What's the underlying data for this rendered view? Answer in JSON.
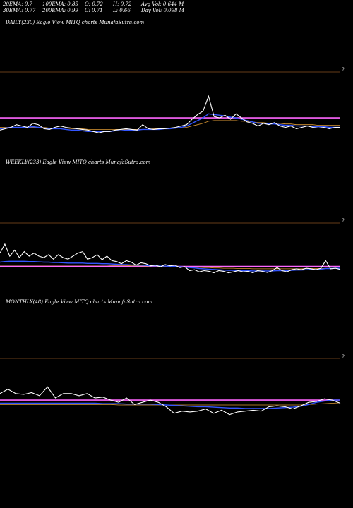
{
  "header": {
    "row1": [
      {
        "label": "20EMA:",
        "value": "0.7"
      },
      {
        "label": "100EMA:",
        "value": "0.85"
      },
      {
        "label": "O:",
        "value": "0.72"
      },
      {
        "label": "H:",
        "value": "0.72"
      },
      {
        "label": "Avg Vol:",
        "value": "0.644 M"
      }
    ],
    "row2": [
      {
        "label": "30EMA:",
        "value": "0.77"
      },
      {
        "label": "200EMA:",
        "value": "0.99"
      },
      {
        "label": "C:",
        "value": "0.71"
      },
      {
        "label": "L:",
        "value": "0.66"
      },
      {
        "label": "Day Vol:",
        "value": "0.098 M"
      }
    ]
  },
  "panels": [
    {
      "label": "DAILY(230) Eagle  View  MITQ charts MunafaSutra.com",
      "tick": "2"
    },
    {
      "label": "WEEKLY(233) Eagle  View  MITQ charts MunafaSutra.com",
      "tick": "2"
    },
    {
      "label": "MONTHLY(48) Eagle  View  MITQ charts MunafaSutra.com",
      "tick": "2"
    }
  ],
  "colors": {
    "price": "#ffffff",
    "ema_short": "#3355ff",
    "ema_mid": "#dd9933",
    "ema_long": "#ff66ff",
    "grid": "#cc7733"
  },
  "chart_data": [
    {
      "type": "line",
      "series": [
        {
          "values": [
            0.62,
            0.64,
            0.66,
            0.7,
            0.68,
            0.66,
            0.72,
            0.7,
            0.64,
            0.63,
            0.66,
            0.68,
            0.66,
            0.65,
            0.64,
            0.63,
            0.62,
            0.6,
            0.58,
            0.6,
            0.6,
            0.62,
            0.63,
            0.64,
            0.63,
            0.62,
            0.7,
            0.64,
            0.63,
            0.64,
            0.64,
            0.65,
            0.66,
            0.68,
            0.7,
            0.78,
            0.85,
            0.9,
            1.12,
            0.82,
            0.8,
            0.84,
            0.78,
            0.86,
            0.8,
            0.74,
            0.72,
            0.68,
            0.72,
            0.7,
            0.73,
            0.68,
            0.66,
            0.68,
            0.64,
            0.66,
            0.68,
            0.66,
            0.65,
            0.66,
            0.64,
            0.66,
            0.66
          ]
        },
        {
          "values": [
            0.64,
            0.65,
            0.66,
            0.66,
            0.66,
            0.66,
            0.67,
            0.66,
            0.65,
            0.64,
            0.64,
            0.64,
            0.63,
            0.62,
            0.62,
            0.61,
            0.6,
            0.6,
            0.6,
            0.6,
            0.6,
            0.61,
            0.61,
            0.62,
            0.62,
            0.62,
            0.63,
            0.63,
            0.63,
            0.63,
            0.64,
            0.64,
            0.65,
            0.66,
            0.68,
            0.72,
            0.76,
            0.8,
            0.86,
            0.85,
            0.84,
            0.83,
            0.81,
            0.8,
            0.78,
            0.76,
            0.74,
            0.72,
            0.72,
            0.71,
            0.71,
            0.7,
            0.69,
            0.69,
            0.68,
            0.68,
            0.68,
            0.67,
            0.67,
            0.67,
            0.66,
            0.66,
            0.66
          ]
        },
        {
          "values": [
            0.66,
            0.66,
            0.66,
            0.66,
            0.66,
            0.66,
            0.66,
            0.66,
            0.66,
            0.65,
            0.65,
            0.65,
            0.65,
            0.64,
            0.64,
            0.64,
            0.63,
            0.63,
            0.63,
            0.63,
            0.63,
            0.63,
            0.63,
            0.63,
            0.63,
            0.63,
            0.63,
            0.63,
            0.64,
            0.64,
            0.64,
            0.64,
            0.65,
            0.65,
            0.66,
            0.68,
            0.7,
            0.72,
            0.75,
            0.76,
            0.76,
            0.76,
            0.76,
            0.76,
            0.75,
            0.75,
            0.74,
            0.73,
            0.73,
            0.72,
            0.72,
            0.72,
            0.71,
            0.71,
            0.7,
            0.7,
            0.7,
            0.7,
            0.69,
            0.69,
            0.69,
            0.69,
            0.69
          ]
        },
        {
          "values": [
            0.8,
            0.8,
            0.8,
            0.8,
            0.8,
            0.8,
            0.8,
            0.8,
            0.8,
            0.8,
            0.8,
            0.8,
            0.8,
            0.8,
            0.8,
            0.8,
            0.8,
            0.8,
            0.8,
            0.8,
            0.8,
            0.8,
            0.8,
            0.8,
            0.8,
            0.8,
            0.8,
            0.8,
            0.8,
            0.8,
            0.8,
            0.8,
            0.8,
            0.8,
            0.8,
            0.8,
            0.8,
            0.8,
            0.8,
            0.8,
            0.8,
            0.8,
            0.8,
            0.8,
            0.8,
            0.8,
            0.8,
            0.8,
            0.8,
            0.8,
            0.8,
            0.8,
            0.8,
            0.8,
            0.8,
            0.8,
            0.8,
            0.8,
            0.8,
            0.8,
            0.8,
            0.8,
            0.8
          ]
        }
      ],
      "ylim": [
        0.3,
        1.5
      ]
    },
    {
      "type": "line",
      "series": [
        {
          "values": [
            1.2,
            1.5,
            1.1,
            1.3,
            1.05,
            1.25,
            1.1,
            1.2,
            1.1,
            1.05,
            1.15,
            1.0,
            1.15,
            1.05,
            1.0,
            1.1,
            1.2,
            1.25,
            1.0,
            1.05,
            1.15,
            0.98,
            1.1,
            0.95,
            0.92,
            0.85,
            0.95,
            0.9,
            0.8,
            0.88,
            0.85,
            0.78,
            0.8,
            0.75,
            0.82,
            0.78,
            0.8,
            0.72,
            0.75,
            0.62,
            0.65,
            0.58,
            0.62,
            0.6,
            0.55,
            0.62,
            0.6,
            0.55,
            0.58,
            0.62,
            0.58,
            0.6,
            0.55,
            0.62,
            0.6,
            0.56,
            0.62,
            0.72,
            0.62,
            0.58,
            0.65,
            0.68,
            0.65,
            0.7,
            0.68,
            0.65,
            0.7,
            0.95,
            0.68,
            0.7,
            0.66
          ]
        },
        {
          "values": [
            0.9,
            0.92,
            0.93,
            0.93,
            0.93,
            0.93,
            0.92,
            0.92,
            0.91,
            0.9,
            0.9,
            0.89,
            0.89,
            0.88,
            0.87,
            0.87,
            0.87,
            0.87,
            0.86,
            0.86,
            0.86,
            0.85,
            0.85,
            0.84,
            0.83,
            0.82,
            0.82,
            0.81,
            0.8,
            0.8,
            0.79,
            0.78,
            0.78,
            0.77,
            0.77,
            0.76,
            0.76,
            0.75,
            0.74,
            0.72,
            0.71,
            0.69,
            0.68,
            0.67,
            0.66,
            0.65,
            0.64,
            0.63,
            0.63,
            0.62,
            0.62,
            0.62,
            0.61,
            0.61,
            0.61,
            0.61,
            0.61,
            0.62,
            0.62,
            0.62,
            0.63,
            0.64,
            0.64,
            0.65,
            0.66,
            0.66,
            0.67,
            0.69,
            0.69,
            0.7,
            0.7
          ]
        },
        {
          "values": [
            0.8,
            0.8,
            0.8,
            0.8,
            0.8,
            0.8,
            0.8,
            0.8,
            0.8,
            0.8,
            0.8,
            0.8,
            0.8,
            0.8,
            0.8,
            0.8,
            0.8,
            0.8,
            0.8,
            0.8,
            0.8,
            0.8,
            0.8,
            0.79,
            0.79,
            0.79,
            0.79,
            0.78,
            0.78,
            0.78,
            0.77,
            0.77,
            0.77,
            0.76,
            0.76,
            0.76,
            0.75,
            0.75,
            0.74,
            0.74,
            0.73,
            0.73,
            0.72,
            0.72,
            0.71,
            0.71,
            0.7,
            0.7,
            0.7,
            0.69,
            0.69,
            0.69,
            0.68,
            0.68,
            0.68,
            0.68,
            0.68,
            0.68,
            0.68,
            0.68,
            0.68,
            0.68,
            0.68,
            0.69,
            0.69,
            0.69,
            0.69,
            0.7,
            0.7,
            0.7,
            0.7
          ]
        },
        {
          "values": [
            0.76,
            0.76,
            0.76,
            0.76,
            0.76,
            0.76,
            0.76,
            0.76,
            0.76,
            0.76,
            0.76,
            0.76,
            0.76,
            0.76,
            0.76,
            0.76,
            0.76,
            0.76,
            0.76,
            0.76,
            0.76,
            0.76,
            0.76,
            0.76,
            0.76,
            0.76,
            0.76,
            0.76,
            0.76,
            0.76,
            0.76,
            0.76,
            0.76,
            0.76,
            0.76,
            0.76,
            0.76,
            0.76,
            0.76,
            0.76,
            0.76,
            0.76,
            0.76,
            0.76,
            0.76,
            0.76,
            0.76,
            0.76,
            0.76,
            0.76,
            0.76,
            0.76,
            0.76,
            0.76,
            0.76,
            0.76,
            0.76,
            0.76,
            0.76,
            0.76,
            0.76,
            0.76,
            0.76,
            0.76,
            0.76,
            0.76,
            0.76,
            0.76,
            0.76,
            0.76,
            0.76
          ]
        }
      ],
      "ylim": [
        0.0,
        2.2
      ]
    },
    {
      "type": "line",
      "series": [
        {
          "values": [
            1.2,
            1.3,
            1.2,
            1.18,
            1.22,
            1.15,
            1.35,
            1.1,
            1.2,
            1.2,
            1.15,
            1.2,
            1.1,
            1.12,
            1.05,
            1.0,
            1.1,
            0.95,
            1.0,
            1.05,
            1.0,
            0.9,
            0.75,
            0.8,
            0.78,
            0.8,
            0.85,
            0.75,
            0.82,
            0.72,
            0.78,
            0.8,
            0.82,
            0.8,
            0.9,
            0.92,
            0.9,
            0.85,
            0.92,
            1.0,
            1.02,
            1.08,
            1.05,
            0.98
          ]
        },
        {
          "values": [
            0.98,
            0.98,
            0.98,
            0.98,
            0.98,
            0.98,
            0.98,
            0.98,
            0.98,
            0.98,
            0.98,
            0.98,
            0.98,
            0.97,
            0.97,
            0.97,
            0.96,
            0.96,
            0.96,
            0.96,
            0.95,
            0.94,
            0.93,
            0.92,
            0.91,
            0.9,
            0.9,
            0.89,
            0.88,
            0.87,
            0.87,
            0.86,
            0.86,
            0.86,
            0.86,
            0.87,
            0.88,
            0.89,
            0.91,
            0.95,
            1.0,
            1.03,
            1.05,
            1.05
          ]
        },
        {
          "values": [
            0.95,
            0.95,
            0.95,
            0.95,
            0.95,
            0.95,
            0.95,
            0.95,
            0.95,
            0.95,
            0.95,
            0.95,
            0.95,
            0.95,
            0.95,
            0.94,
            0.94,
            0.94,
            0.94,
            0.94,
            0.94,
            0.94,
            0.94,
            0.94,
            0.94,
            0.94,
            0.94,
            0.94,
            0.94,
            0.94,
            0.94,
            0.94,
            0.94,
            0.94,
            0.94,
            0.94,
            0.94,
            0.94,
            0.94,
            0.95,
            0.96,
            0.97,
            0.98,
            0.99
          ]
        },
        {
          "values": [
            1.05,
            1.05,
            1.05,
            1.05,
            1.05,
            1.05,
            1.05,
            1.05,
            1.05,
            1.05,
            1.05,
            1.05,
            1.05,
            1.05,
            1.05,
            1.05,
            1.05,
            1.05,
            1.05,
            1.05,
            1.05,
            1.05,
            1.05,
            1.05,
            1.05,
            1.05,
            1.05,
            1.05,
            1.05,
            1.05,
            1.05,
            1.05,
            1.05,
            1.05,
            1.05,
            1.05,
            1.05,
            1.05,
            1.05,
            1.05,
            1.05,
            1.05,
            1.05,
            1.05
          ]
        }
      ],
      "ylim": [
        0.2,
        2.0
      ]
    }
  ]
}
